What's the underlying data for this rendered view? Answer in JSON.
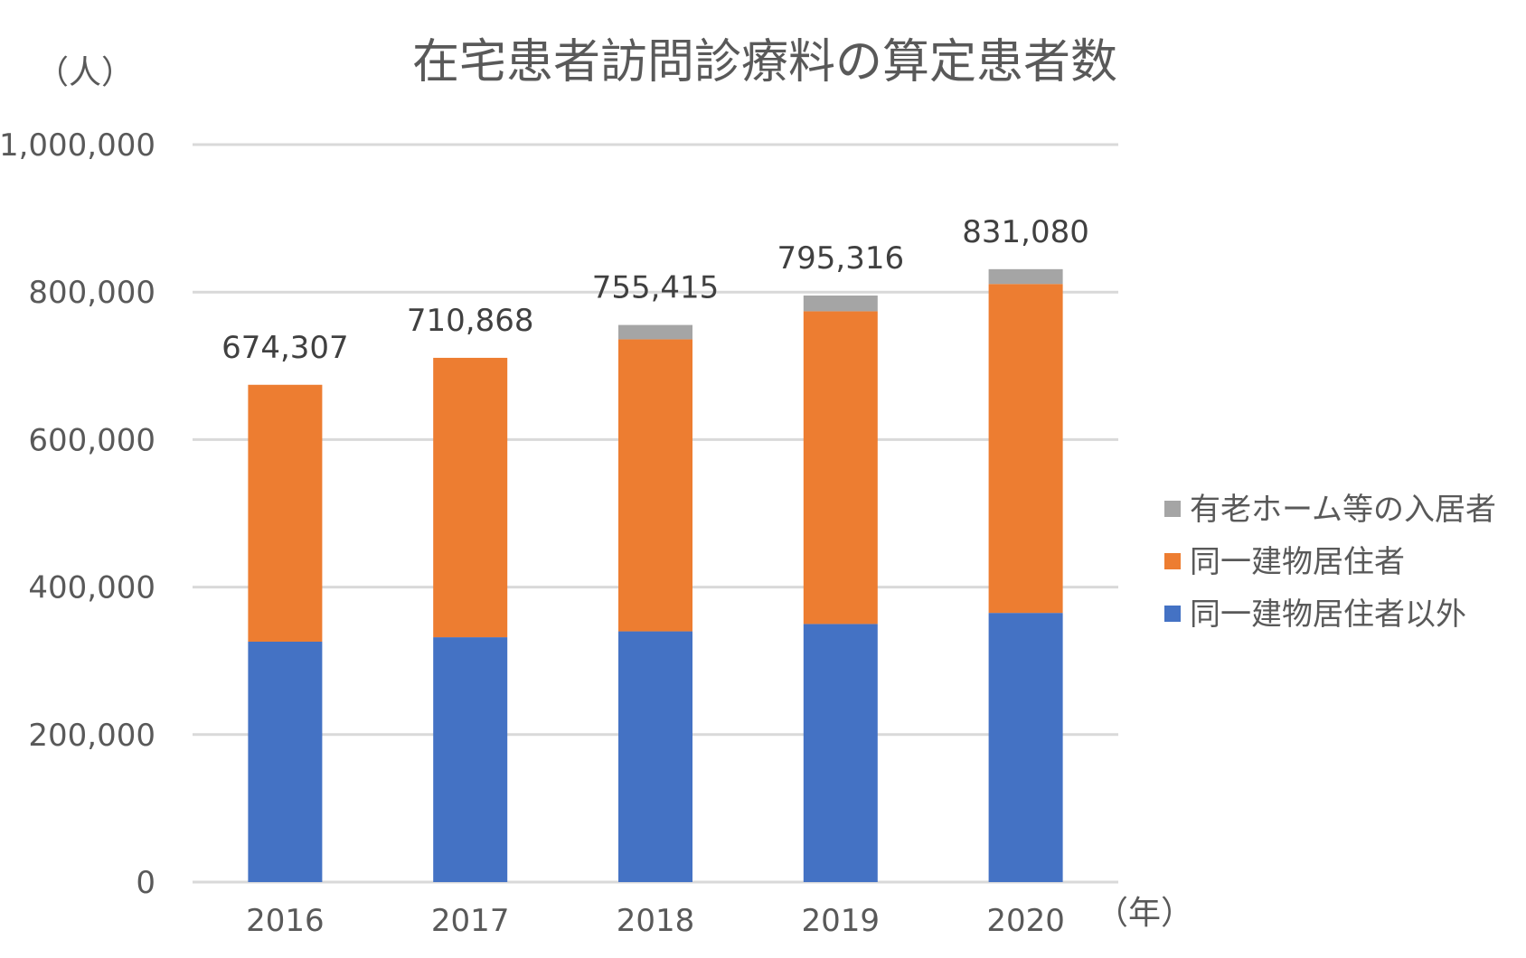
{
  "chart_data": {
    "type": "bar",
    "stacked": true,
    "title": "在宅患者訪問診療料の算定患者数",
    "ylabel": "（人）",
    "xlabel": "（年）",
    "categories": [
      "2016",
      "2017",
      "2018",
      "2019",
      "2020"
    ],
    "ylim": [
      0,
      1000000
    ],
    "yticks": [
      0,
      200000,
      400000,
      600000,
      800000,
      1000000
    ],
    "ytick_labels": [
      "0",
      "200,000",
      "400,000",
      "600,000",
      "800,000",
      "1,000,000"
    ],
    "grid": true,
    "legend_position": "right",
    "series": [
      {
        "name": "同一建物居住者以外",
        "color": "#4472c4",
        "values": [
          326000,
          332000,
          340000,
          350000,
          365000
        ]
      },
      {
        "name": "同一建物居住者",
        "color": "#ed7d31",
        "values": [
          348307,
          378868,
          396000,
          424000,
          446000
        ]
      },
      {
        "name": "有老ホーム等の入居者",
        "color": "#a5a5a5",
        "values": [
          0,
          0,
          19415,
          21316,
          20080
        ]
      }
    ],
    "totals": [
      674307,
      710868,
      755415,
      795316,
      831080
    ],
    "total_labels": [
      "674,307",
      "710,868",
      "755,415",
      "795,316",
      "831,080"
    ]
  }
}
